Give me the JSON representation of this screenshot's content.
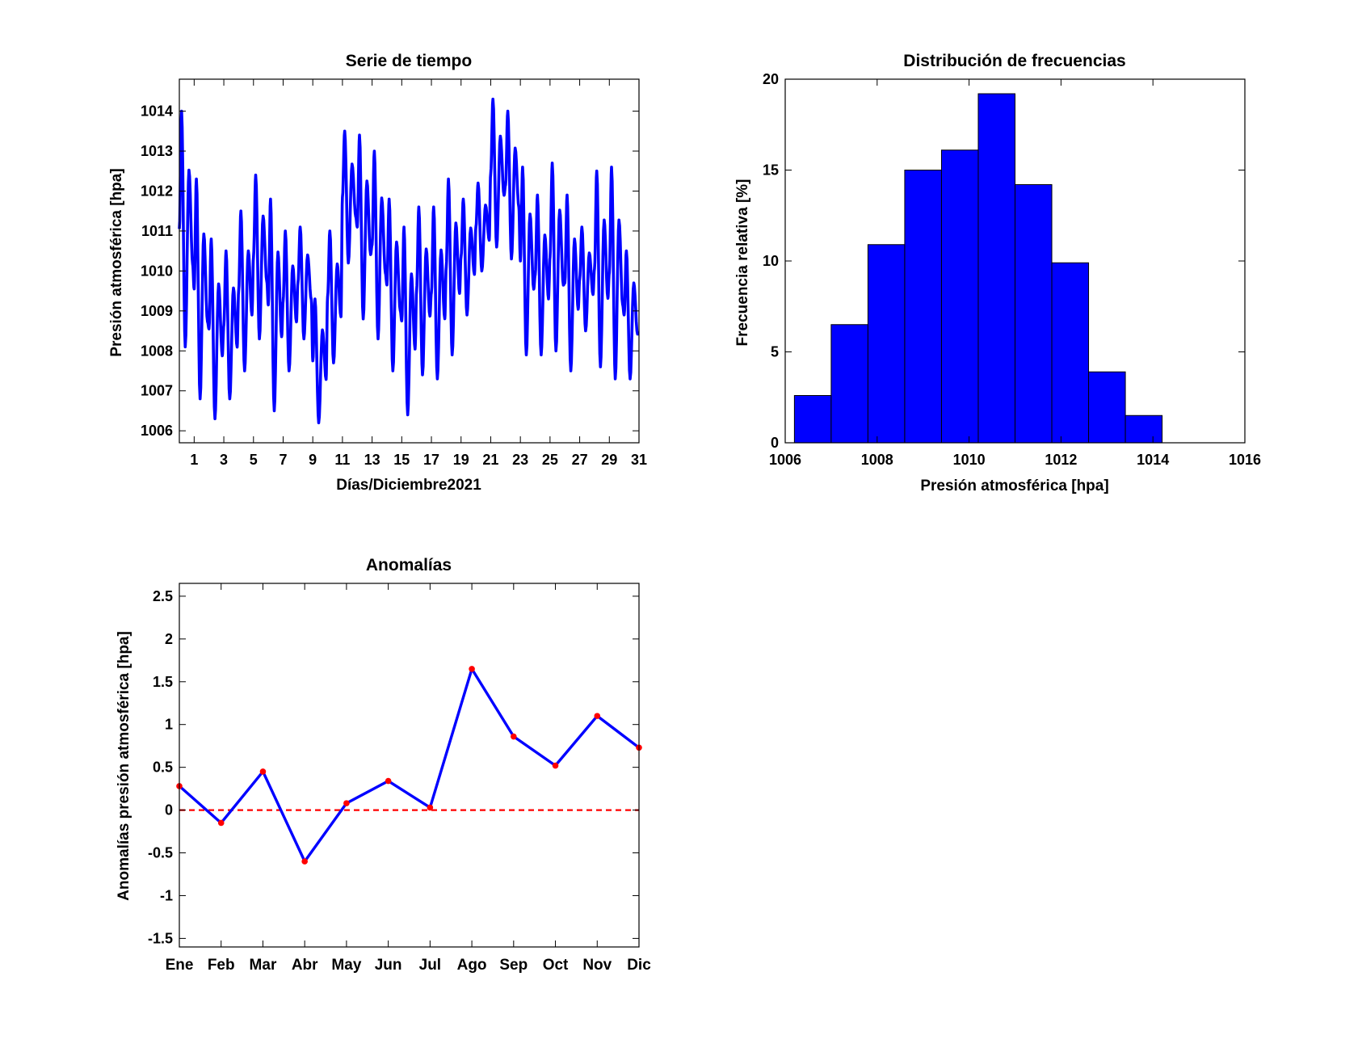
{
  "colors": {
    "series_line": "#0000FF",
    "bar_fill": "#0000FF",
    "marker": "#FF0000",
    "zero_line": "#FF0000",
    "axes": "#000000",
    "background": "#FFFFFF"
  },
  "chart_data": [
    {
      "id": "time-series",
      "type": "line",
      "title": "Serie de tiempo",
      "xlabel": "Días/Diciembre2021",
      "ylabel": "Presión atmosférica [hpa]",
      "xlim": [
        0,
        31
      ],
      "ylim": [
        1005.7,
        1014.8
      ],
      "xticks": [
        1,
        3,
        5,
        7,
        9,
        11,
        13,
        15,
        17,
        19,
        21,
        23,
        25,
        27,
        29,
        31
      ],
      "xtick_labels": [
        "1",
        "3",
        "5",
        "7",
        "9",
        "11",
        "13",
        "15",
        "17",
        "19",
        "21",
        "23",
        "25",
        "27",
        "29",
        "31"
      ],
      "yticks": [
        1006,
        1007,
        1008,
        1009,
        1010,
        1011,
        1012,
        1013,
        1014
      ],
      "ytick_labels": [
        "1006",
        "1007",
        "1008",
        "1009",
        "1010",
        "1011",
        "1012",
        "1013",
        "1014"
      ],
      "grid": false,
      "sampling": "hourly, semidiurnal oscillation",
      "daily_max": [
        1014.0,
        1012.3,
        1010.8,
        1010.5,
        1011.5,
        1012.4,
        1011.8,
        1011.0,
        1011.1,
        1009.3,
        1011.0,
        1013.5,
        1013.4,
        1013.0,
        1011.8,
        1011.1,
        1011.6,
        1011.6,
        1012.3,
        1011.8,
        1012.2,
        1014.3,
        1014.0,
        1012.6,
        1011.9,
        1012.7,
        1011.9,
        1011.1,
        1012.5,
        1012.6,
        1010.5
      ],
      "daily_min": [
        1008.1,
        1006.8,
        1006.3,
        1006.8,
        1007.5,
        1008.3,
        1006.5,
        1007.5,
        1008.3,
        1006.2,
        1007.7,
        1010.2,
        1008.8,
        1008.3,
        1007.5,
        1006.4,
        1007.4,
        1007.3,
        1007.9,
        1008.9,
        1010.0,
        1010.6,
        1010.3,
        1007.9,
        1007.9,
        1008.0,
        1007.5,
        1008.5,
        1007.6,
        1007.3,
        1007.3
      ]
    },
    {
      "id": "histogram",
      "type": "bar",
      "title": "Distribución de frecuencias",
      "xlabel": "Presión atmosférica [hpa]",
      "ylabel": "Frecuencia relativa [%]",
      "xlim": [
        1006,
        1016
      ],
      "ylim": [
        0,
        20
      ],
      "xticks": [
        1006,
        1008,
        1010,
        1012,
        1014,
        1016
      ],
      "xtick_labels": [
        "1006",
        "1008",
        "1010",
        "1012",
        "1014",
        "1016"
      ],
      "yticks": [
        0,
        5,
        10,
        15,
        20
      ],
      "ytick_labels": [
        "0",
        "5",
        "10",
        "15",
        "20"
      ],
      "bin_width": 0.8,
      "bin_centers": [
        1006.6,
        1007.4,
        1008.2,
        1009.0,
        1009.8,
        1010.6,
        1011.4,
        1012.2,
        1013.0,
        1013.8
      ],
      "values": [
        2.6,
        6.5,
        10.9,
        15.0,
        16.1,
        19.2,
        14.2,
        9.9,
        3.9,
        1.5
      ]
    },
    {
      "id": "anomalies",
      "type": "line",
      "title": "Anomalías",
      "xlabel": "",
      "ylabel": "Anomalías presión atmosférica [hpa]",
      "categories": [
        "Ene",
        "Feb",
        "Mar",
        "Abr",
        "May",
        "Jun",
        "Jul",
        "Ago",
        "Sep",
        "Oct",
        "Nov",
        "Dic"
      ],
      "values": [
        0.28,
        -0.15,
        0.45,
        -0.6,
        0.08,
        0.34,
        0.03,
        1.65,
        0.86,
        0.52,
        1.1,
        0.73
      ],
      "ylim": [
        -1.6,
        2.65
      ],
      "yticks": [
        -1.5,
        -1,
        -0.5,
        0,
        0.5,
        1,
        1.5,
        2,
        2.5
      ],
      "ytick_labels": [
        "-1.5",
        "-1",
        "-0.5",
        "0",
        "0.5",
        "1",
        "1.5",
        "2",
        "2.5"
      ],
      "reference_line": 0,
      "grid": false
    }
  ]
}
